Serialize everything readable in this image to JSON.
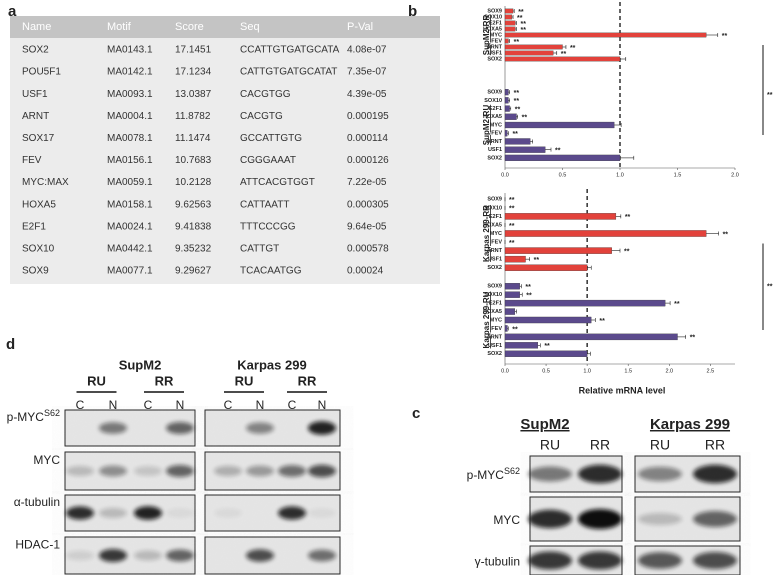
{
  "panel_a": {
    "label": "a",
    "table": {
      "columns": [
        "Name",
        "Motif",
        "Score",
        "Seq",
        "P-Val"
      ],
      "rows": [
        [
          "SOX2",
          "MA0143.1",
          "17.1451",
          "CCATTGTGATGCATA",
          "4.08e-07"
        ],
        [
          "POU5F1",
          "MA0142.1",
          "17.1234",
          "CATTGTGATGCATAT",
          "7.35e-07"
        ],
        [
          "USF1",
          "MA0093.1",
          "13.0387",
          "CACGTGG",
          "4.39e-05"
        ],
        [
          "ARNT",
          "MA0004.1",
          "11.8782",
          "CACGTG",
          "0.000195"
        ],
        [
          "SOX17",
          "MA0078.1",
          "11.1474",
          "GCCATTGTG",
          "0.000114"
        ],
        [
          "FEV",
          "MA0156.1",
          "10.7683",
          "CGGGAAAT",
          "0.000126"
        ],
        [
          "MYC:MAX",
          "MA0059.1",
          "10.2128",
          "ATTCACGTGGT",
          "7.22e-05"
        ],
        [
          "HOXA5",
          "MA0158.1",
          "9.62563",
          "CATTAATT",
          "0.000305"
        ],
        [
          "E2F1",
          "MA0024.1",
          "9.41838",
          "TTTCCCGG",
          "9.64e-05"
        ],
        [
          "SOX10",
          "MA0442.1",
          "9.35232",
          "CATTGT",
          "0.000578"
        ],
        [
          "SOX9",
          "MA0077.1",
          "9.29627",
          "TCACAATGG",
          "0.00024"
        ]
      ]
    }
  },
  "panel_b": {
    "label": "b",
    "type": "bar",
    "x_label": "Relative mRNA level",
    "categories": [
      "SOX9",
      "SOX10",
      "E2F1",
      "HOXA5",
      "MYC",
      "FEV",
      "ARNT",
      "USF1",
      "SOX2"
    ],
    "charts": [
      {
        "xlim": [
          0,
          2
        ],
        "xticks": [
          {
            "value": 0,
            "label": "0.0"
          },
          {
            "value": 0.5,
            "label": "0.5"
          },
          {
            "value": 1,
            "label": "1.0"
          },
          {
            "value": 1.5,
            "label": "1.5"
          },
          {
            "value": 2,
            "label": "2.0"
          }
        ],
        "reference_line": 1,
        "bracket_label": "**",
        "groups": [
          {
            "name": "SupM2-RR",
            "color": "#e2423b",
            "values": [
              0.07,
              0.06,
              0.09,
              0.09,
              1.75,
              0.03,
              0.5,
              0.42,
              1.0
            ],
            "errors": [
              0.01,
              0.01,
              0.01,
              0.01,
              0.1,
              0.01,
              0.03,
              0.03,
              0.05
            ],
            "sig": [
              "**",
              "**",
              "**",
              "**",
              "**",
              "**",
              "**",
              "**",
              null
            ]
          },
          {
            "name": "SupM2-RU",
            "color": "#5b4a8c",
            "values": [
              0.03,
              0.03,
              0.04,
              0.1,
              0.95,
              0.02,
              0.22,
              0.35,
              1.0
            ],
            "errors": [
              0.01,
              0.01,
              0.01,
              0.01,
              0.06,
              0.01,
              0.02,
              0.05,
              0.12
            ],
            "sig": [
              "**",
              "**",
              "**",
              "**",
              null,
              "**",
              null,
              "**",
              null
            ]
          }
        ]
      },
      {
        "xlim": [
          0,
          2.8
        ],
        "xticks": [
          {
            "value": 0,
            "label": "0.0"
          },
          {
            "value": 0.5,
            "label": "0.5"
          },
          {
            "value": 1,
            "label": "1.0"
          },
          {
            "value": 1.5,
            "label": "1.5"
          },
          {
            "value": 2,
            "label": "2.0"
          },
          {
            "value": 2.5,
            "label": "2.5"
          }
        ],
        "reference_line": 1,
        "bracket_label": "**",
        "groups": [
          {
            "name": "Karpas 299-RR",
            "color": "#e2423b",
            "values": [
              0,
              0,
              1.35,
              0,
              2.45,
              0,
              1.3,
              0.25,
              1.0
            ],
            "errors": [
              0,
              0,
              0.06,
              0,
              0.15,
              0,
              0.1,
              0.05,
              0.05
            ],
            "sig": [
              "**",
              "**",
              "**",
              "**",
              "**",
              "**",
              "**",
              "**",
              null
            ]
          },
          {
            "name": "Karpas 299-RU",
            "color": "#5b4a8c",
            "values": [
              0.18,
              0.18,
              1.95,
              0.12,
              1.05,
              0.03,
              2.1,
              0.4,
              1.0
            ],
            "errors": [
              0.02,
              0.03,
              0.06,
              0.02,
              0.05,
              0.01,
              0.1,
              0.03,
              0.04
            ],
            "sig": [
              "**",
              "**",
              "**",
              null,
              "**",
              "**",
              "**",
              "**",
              null
            ]
          }
        ]
      }
    ]
  },
  "panel_c": {
    "label": "c",
    "cell_lines": [
      "SupM2",
      "Karpas 299"
    ],
    "lanes": [
      "RU",
      "RR"
    ],
    "rows": [
      {
        "main": "p-MYC",
        "sup": "S62"
      },
      {
        "main": "MYC"
      },
      {
        "main": "γ-tubulin"
      }
    ]
  },
  "panel_d": {
    "label": "d",
    "cell_lines": [
      "SupM2",
      "Karpas 299"
    ],
    "conditions": [
      "RU",
      "RR"
    ],
    "fractions": [
      "C",
      "N"
    ],
    "rows": [
      {
        "main": "p-MYC",
        "sup": "S62"
      },
      {
        "main": "MYC"
      },
      {
        "main": "α-tubulin"
      },
      {
        "main": "HDAC-1"
      }
    ]
  }
}
